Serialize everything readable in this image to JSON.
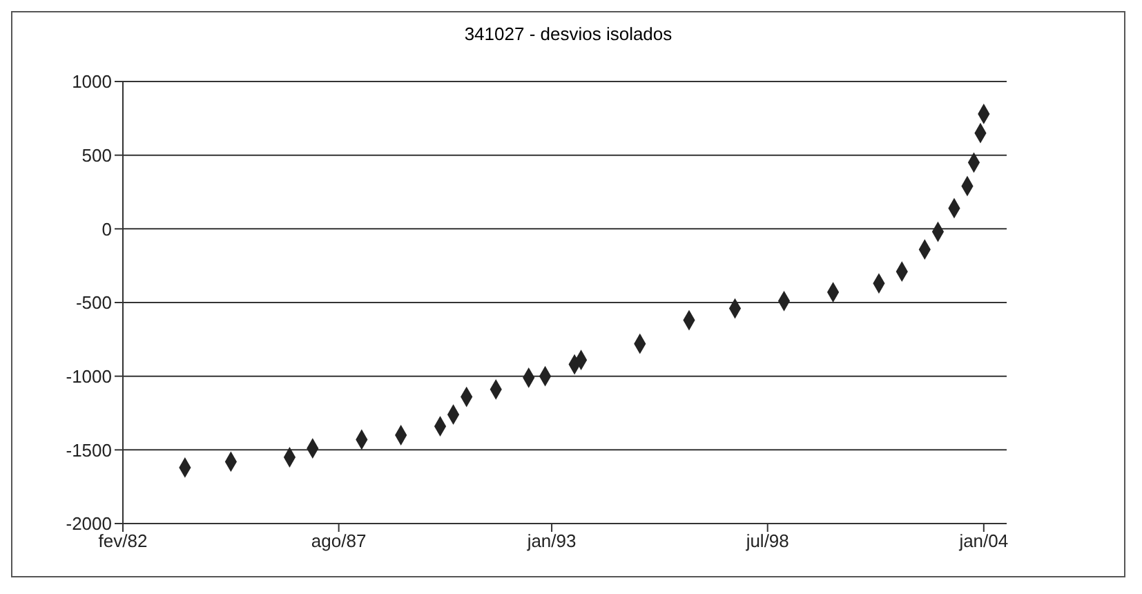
{
  "chart_data": {
    "type": "scatter",
    "title": "341027 - desvios isolados",
    "series": [
      {
        "color": "#222222",
        "x": [
          "1983-09",
          "1984-11",
          "1986-05",
          "1986-12",
          "1988-03",
          "1989-03",
          "1990-03",
          "1990-07",
          "1990-11",
          "1991-08",
          "1992-06",
          "1992-11",
          "1993-08",
          "1993-10",
          "1995-04",
          "1996-07",
          "1997-09",
          "1998-12",
          "2000-03",
          "2001-05",
          "2001-12",
          "2002-07",
          "2002-11",
          "2003-04",
          "2003-08",
          "2003-10",
          "2003-12",
          "2004-01"
        ],
        "values": [
          -1620,
          -1580,
          -1550,
          -1490,
          -1430,
          -1400,
          -1340,
          -1260,
          -1140,
          -1090,
          -1010,
          -1000,
          -920,
          -890,
          -780,
          -620,
          -540,
          -490,
          -430,
          -370,
          -290,
          -140,
          -20,
          140,
          290,
          450,
          650,
          780
        ]
      }
    ],
    "xlim": [
      "1982-02",
      "2004-08"
    ],
    "xticks": [
      {
        "value": "1982-02",
        "label": "fev/82"
      },
      {
        "value": "1987-08",
        "label": "ago/87"
      },
      {
        "value": "1993-01",
        "label": "jan/93"
      },
      {
        "value": "1998-07",
        "label": "jul/98"
      },
      {
        "value": "2004-01",
        "label": "jan/04"
      }
    ],
    "ylim": [
      -2000,
      1000
    ],
    "yticks": [
      -2000,
      -1500,
      -1000,
      -500,
      0,
      500,
      1000
    ],
    "grid": "y",
    "marker": "diamond"
  }
}
